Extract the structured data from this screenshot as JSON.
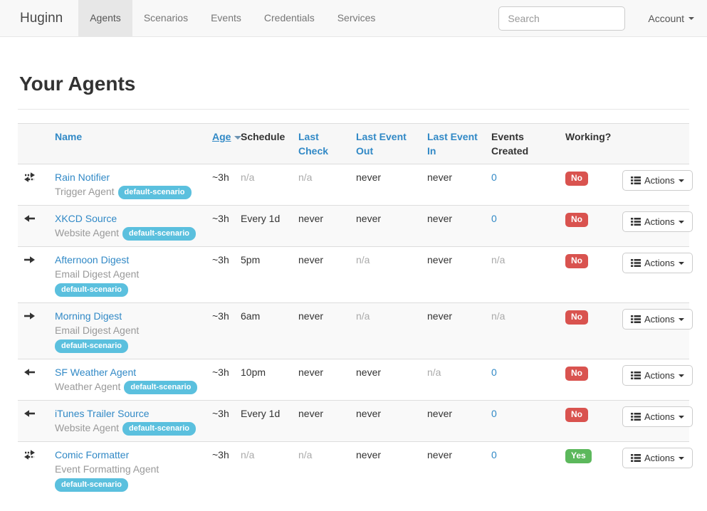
{
  "navbar": {
    "brand": "Huginn",
    "items": [
      {
        "label": "Agents",
        "active": true
      },
      {
        "label": "Scenarios",
        "active": false
      },
      {
        "label": "Events",
        "active": false
      },
      {
        "label": "Credentials",
        "active": false
      },
      {
        "label": "Services",
        "active": false
      }
    ],
    "search_placeholder": "Search",
    "account_label": "Account"
  },
  "page": {
    "title": "Your Agents"
  },
  "table": {
    "columns": [
      {
        "label": "",
        "sortable": false
      },
      {
        "label": "Name",
        "sortable": true
      },
      {
        "label": "Age",
        "sortable": true,
        "sorted": "desc"
      },
      {
        "label": "Schedule",
        "sortable": false
      },
      {
        "label": "Last Check",
        "sortable": true
      },
      {
        "label": "Last Event Out",
        "sortable": true
      },
      {
        "label": "Last Event In",
        "sortable": true
      },
      {
        "label": "Events Created",
        "sortable": false
      },
      {
        "label": "Working?",
        "sortable": false
      },
      {
        "label": "",
        "sortable": false
      }
    ],
    "actions_label": "Actions",
    "rows": [
      {
        "icon": "transfer-icon",
        "name": "Rain Notifier",
        "type": "Trigger Agent",
        "badge": "default-scenario",
        "age": "~3h",
        "schedule": "n/a",
        "last_check": "n/a",
        "last_event_out": "never",
        "last_event_in": "never",
        "events_created": "0",
        "working": "No"
      },
      {
        "icon": "arrow-left-icon",
        "name": "XKCD Source",
        "type": "Website Agent",
        "badge": "default-scenario",
        "age": "~3h",
        "schedule": "Every 1d",
        "last_check": "never",
        "last_event_out": "never",
        "last_event_in": "never",
        "events_created": "0",
        "working": "No"
      },
      {
        "icon": "arrow-right-icon",
        "name": "Afternoon Digest",
        "type": "Email Digest Agent",
        "badge": "default-scenario",
        "age": "~3h",
        "schedule": "5pm",
        "last_check": "never",
        "last_event_out": "n/a",
        "last_event_in": "never",
        "events_created": "n/a",
        "working": "No"
      },
      {
        "icon": "arrow-right-icon",
        "name": "Morning Digest",
        "type": "Email Digest Agent",
        "badge": "default-scenario",
        "age": "~3h",
        "schedule": "6am",
        "last_check": "never",
        "last_event_out": "n/a",
        "last_event_in": "never",
        "events_created": "n/a",
        "working": "No"
      },
      {
        "icon": "arrow-left-icon",
        "name": "SF Weather Agent",
        "type": "Weather Agent",
        "badge": "default-scenario",
        "age": "~3h",
        "schedule": "10pm",
        "last_check": "never",
        "last_event_out": "never",
        "last_event_in": "n/a",
        "events_created": "0",
        "working": "No"
      },
      {
        "icon": "arrow-left-icon",
        "name": "iTunes Trailer Source",
        "type": "Website Agent",
        "badge": "default-scenario",
        "age": "~3h",
        "schedule": "Every 1d",
        "last_check": "never",
        "last_event_out": "never",
        "last_event_in": "never",
        "events_created": "0",
        "working": "No"
      },
      {
        "icon": "transfer-icon",
        "name": "Comic Formatter",
        "type": "Event Formatting Agent",
        "badge": "default-scenario",
        "age": "~3h",
        "schedule": "n/a",
        "last_check": "n/a",
        "last_event_out": "never",
        "last_event_in": "never",
        "events_created": "0",
        "working": "Yes"
      }
    ]
  },
  "colors": {
    "link_blue": "#3189c6",
    "badge_info": "#5bc0de",
    "badge_danger": "#d9534f",
    "badge_success": "#5cb85c"
  }
}
